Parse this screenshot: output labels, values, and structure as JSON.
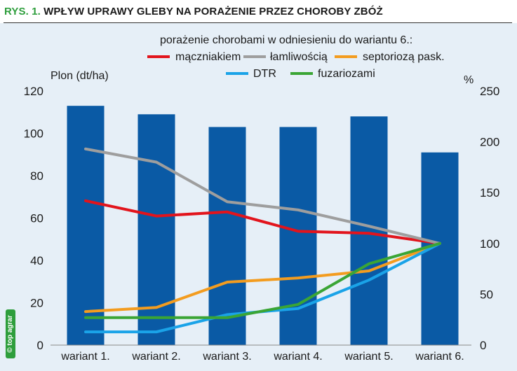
{
  "figure": {
    "label": "RYS. 1.",
    "title": "WPŁYW UPRAWY GLEBY NA PORAŻENIE PRZEZ CHOROBY ZBÓŻ",
    "watermark": "© top agrar"
  },
  "colors": {
    "title_label": "#2e9e3c",
    "background": "#e6eff7",
    "bars": "#0a5aa5"
  },
  "chart_data": {
    "type": "bar",
    "categories": [
      "wariant 1.",
      "wariant 2.",
      "wariant 3.",
      "wariant 4.",
      "wariant 5.",
      "wariant 6."
    ],
    "bar_series": {
      "name": "",
      "values": [
        113,
        109,
        103,
        103,
        108,
        91
      ]
    },
    "ylabel_left": "Plon (dt/ha)",
    "ylim_left": [
      0,
      120
    ],
    "yticks_left": [
      0,
      20,
      40,
      60,
      80,
      100,
      120
    ],
    "ylabel_right": "%",
    "ylim_right": [
      0,
      250
    ],
    "yticks_right": [
      0,
      50,
      100,
      150,
      200,
      250
    ],
    "legend_title": "porażenie chorobami w odniesieniu do wariantu 6.:",
    "legend_placement": "top",
    "grid": false,
    "line_series": [
      {
        "name": "mączniakiem",
        "color": "#e2141c",
        "axis": "right",
        "values": [
          142,
          127,
          131,
          112,
          110,
          100
        ]
      },
      {
        "name": "łamliwością",
        "color": "#9e9e9e",
        "axis": "right",
        "values": [
          193,
          180,
          141,
          133,
          117,
          100
        ]
      },
      {
        "name": "septoriozą pask.",
        "color": "#f39c1f",
        "axis": "right",
        "values": [
          33,
          37,
          62,
          66,
          73,
          100
        ]
      },
      {
        "name": "DTR",
        "color": "#1aa3e8",
        "axis": "right",
        "values": [
          13,
          13,
          30,
          36,
          64,
          100
        ]
      },
      {
        "name": "fuzariozami",
        "color": "#3aa535",
        "axis": "right",
        "values": [
          27,
          27,
          27,
          40,
          80,
          100
        ]
      }
    ]
  }
}
